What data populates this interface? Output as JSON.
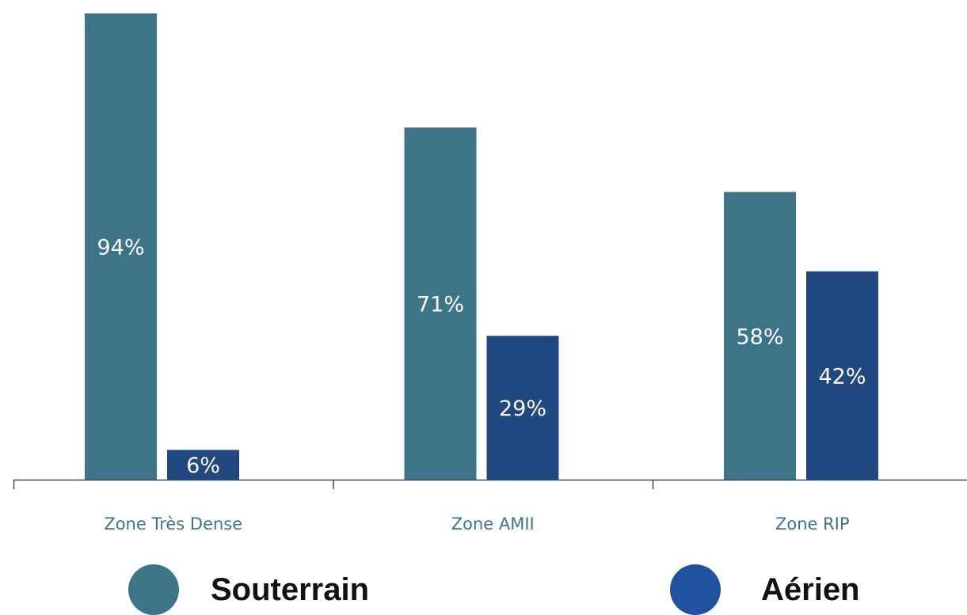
{
  "chart_data": {
    "type": "bar",
    "categories": [
      "Zone Très Dense",
      "Zone AMII",
      "Zone RIP"
    ],
    "series": [
      {
        "name": "Souterrain",
        "values": [
          94,
          71,
          58
        ],
        "labels": [
          "94%",
          "71%",
          "58%"
        ],
        "color": "#3e7487"
      },
      {
        "name": "Aérien",
        "values": [
          6,
          29,
          42
        ],
        "labels": [
          "6%",
          "29%",
          "42%"
        ],
        "color": "#214880"
      }
    ],
    "ylim": [
      0,
      94
    ],
    "grid": false,
    "legend": "bottom",
    "category_label_color": "#3e7487",
    "axis_color": "#3b4a5e"
  }
}
